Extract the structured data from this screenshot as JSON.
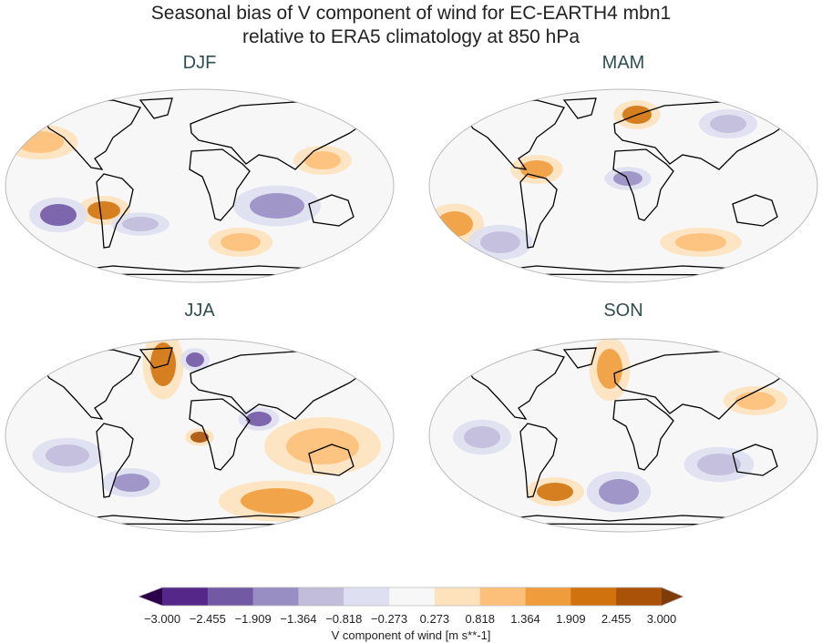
{
  "title_line1": "Seasonal bias of V component of wind for EC-EARTH4 mbn1",
  "title_line2": "relative to ERA5 climatology at 850 hPa",
  "panels": [
    {
      "label": "DJF"
    },
    {
      "label": "MAM"
    },
    {
      "label": "JJA"
    },
    {
      "label": "SON"
    }
  ],
  "colorbar": {
    "label": "V component of wind [m s**-1]",
    "ticks": [
      "−3.000",
      "−2.455",
      "−1.909",
      "−1.364",
      "−0.818",
      "−0.273",
      "0.273",
      "0.818",
      "1.364",
      "1.909",
      "2.455",
      "3.000"
    ],
    "colors": [
      "#542788",
      "#7259a3",
      "#998ec3",
      "#c2bddb",
      "#dedff0",
      "#f7f7f7",
      "#fde2bc",
      "#fdc07a",
      "#ef9c3c",
      "#d0730f",
      "#a95208"
    ],
    "under_color": "#2d004b",
    "over_color": "#7f3b08",
    "extend": "both"
  },
  "projection": "Robinson",
  "coastline_color": "#000000"
}
